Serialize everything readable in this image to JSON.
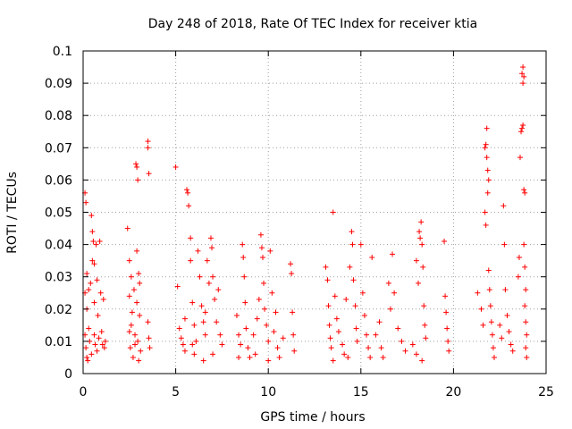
{
  "chart_data": {
    "type": "scatter",
    "title": "Day 248 of 2018, Rate Of TEC Index for receiver ktia",
    "xlabel": "GPS time / hours",
    "ylabel": "ROTI / TECUs",
    "xlim": [
      0,
      25
    ],
    "ylim": [
      0,
      0.1
    ],
    "x_ticks": [
      "0",
      "5",
      "10",
      "15",
      "20",
      "25"
    ],
    "y_ticks": [
      "0",
      "0.01",
      "0.02",
      "0.03",
      "0.04",
      "0.05",
      "0.06",
      "0.07",
      "0.08",
      "0.09",
      "0.1"
    ],
    "x_tick_values": [
      0,
      5,
      10,
      15,
      20,
      25
    ],
    "y_tick_values": [
      0,
      0.01,
      0.02,
      0.03,
      0.04,
      0.05,
      0.06,
      0.07,
      0.08,
      0.09,
      0.1
    ],
    "grid": true,
    "marker": "+",
    "color": "#ff0000",
    "series": [
      {
        "name": "ROTI",
        "points": [
          [
            0.1,
            0.056
          ],
          [
            0.15,
            0.053
          ],
          [
            0.2,
            0.031
          ],
          [
            0.1,
            0.025
          ],
          [
            0.2,
            0.02
          ],
          [
            0.1,
            0.012
          ],
          [
            0.15,
            0.008
          ],
          [
            0.2,
            0.005
          ],
          [
            0.3,
            0.026
          ],
          [
            0.3,
            0.014
          ],
          [
            0.35,
            0.01
          ],
          [
            0.4,
            0.028
          ],
          [
            0.45,
            0.049
          ],
          [
            0.5,
            0.044
          ],
          [
            0.5,
            0.035
          ],
          [
            0.55,
            0.041
          ],
          [
            0.6,
            0.034
          ],
          [
            0.6,
            0.022
          ],
          [
            0.6,
            0.012
          ],
          [
            0.65,
            0.009
          ],
          [
            0.7,
            0.04
          ],
          [
            0.75,
            0.029
          ],
          [
            0.8,
            0.018
          ],
          [
            0.85,
            0.011
          ],
          [
            0.9,
            0.041
          ],
          [
            0.95,
            0.025
          ],
          [
            1.0,
            0.013
          ],
          [
            1.05,
            0.009
          ],
          [
            1.1,
            0.023
          ],
          [
            1.2,
            0.01
          ],
          [
            0.25,
            0.004
          ],
          [
            0.45,
            0.006
          ],
          [
            0.75,
            0.007
          ],
          [
            1.15,
            0.008
          ],
          [
            2.4,
            0.045
          ],
          [
            2.5,
            0.035
          ],
          [
            2.5,
            0.024
          ],
          [
            2.5,
            0.013
          ],
          [
            2.55,
            0.008
          ],
          [
            2.6,
            0.03
          ],
          [
            2.65,
            0.019
          ],
          [
            2.7,
            0.005
          ],
          [
            2.75,
            0.026
          ],
          [
            2.8,
            0.012
          ],
          [
            2.85,
            0.065
          ],
          [
            2.9,
            0.064
          ],
          [
            2.95,
            0.06
          ],
          [
            2.9,
            0.038
          ],
          [
            2.9,
            0.022
          ],
          [
            2.95,
            0.01
          ],
          [
            3.0,
            0.031
          ],
          [
            3.05,
            0.018
          ],
          [
            3.1,
            0.007
          ],
          [
            3.0,
            0.004
          ],
          [
            3.5,
            0.072
          ],
          [
            3.5,
            0.07
          ],
          [
            3.55,
            0.062
          ],
          [
            3.5,
            0.016
          ],
          [
            3.55,
            0.011
          ],
          [
            3.6,
            0.008
          ],
          [
            2.6,
            0.015
          ],
          [
            2.8,
            0.009
          ],
          [
            3.05,
            0.028
          ],
          [
            5.0,
            0.064
          ],
          [
            5.1,
            0.027
          ],
          [
            5.2,
            0.014
          ],
          [
            5.3,
            0.011
          ],
          [
            5.4,
            0.009
          ],
          [
            5.5,
            0.017
          ],
          [
            5.6,
            0.057
          ],
          [
            5.65,
            0.056
          ],
          [
            5.7,
            0.052
          ],
          [
            5.8,
            0.042
          ],
          [
            5.8,
            0.035
          ],
          [
            5.9,
            0.022
          ],
          [
            6.0,
            0.015
          ],
          [
            6.1,
            0.01
          ],
          [
            6.2,
            0.038
          ],
          [
            6.3,
            0.03
          ],
          [
            6.4,
            0.021
          ],
          [
            6.5,
            0.016
          ],
          [
            6.6,
            0.012
          ],
          [
            6.7,
            0.035
          ],
          [
            6.8,
            0.028
          ],
          [
            6.9,
            0.042
          ],
          [
            6.95,
            0.039
          ],
          [
            7.0,
            0.03
          ],
          [
            7.1,
            0.023
          ],
          [
            7.2,
            0.016
          ],
          [
            7.3,
            0.026
          ],
          [
            7.4,
            0.012
          ],
          [
            7.5,
            0.009
          ],
          [
            5.5,
            0.007
          ],
          [
            6.0,
            0.006
          ],
          [
            6.5,
            0.004
          ],
          [
            7.0,
            0.006
          ],
          [
            5.9,
            0.009
          ],
          [
            6.6,
            0.019
          ],
          [
            8.3,
            0.018
          ],
          [
            8.4,
            0.012
          ],
          [
            8.5,
            0.009
          ],
          [
            8.6,
            0.04
          ],
          [
            8.65,
            0.036
          ],
          [
            8.7,
            0.03
          ],
          [
            8.75,
            0.022
          ],
          [
            8.8,
            0.014
          ],
          [
            8.9,
            0.008
          ],
          [
            9.0,
            0.005
          ],
          [
            9.2,
            0.012
          ],
          [
            9.4,
            0.017
          ],
          [
            9.5,
            0.023
          ],
          [
            9.6,
            0.043
          ],
          [
            9.65,
            0.039
          ],
          [
            9.7,
            0.036
          ],
          [
            9.75,
            0.028
          ],
          [
            9.8,
            0.02
          ],
          [
            9.9,
            0.015
          ],
          [
            10.0,
            0.01
          ],
          [
            10.1,
            0.038
          ],
          [
            10.2,
            0.025
          ],
          [
            10.3,
            0.013
          ],
          [
            10.4,
            0.019
          ],
          [
            10.5,
            0.008
          ],
          [
            10.6,
            0.005
          ],
          [
            10.8,
            0.011
          ],
          [
            11.2,
            0.034
          ],
          [
            11.25,
            0.031
          ],
          [
            11.3,
            0.019
          ],
          [
            11.35,
            0.012
          ],
          [
            11.4,
            0.007
          ],
          [
            9.3,
            0.006
          ],
          [
            10.0,
            0.004
          ],
          [
            8.4,
            0.005
          ],
          [
            13.1,
            0.033
          ],
          [
            13.2,
            0.029
          ],
          [
            13.25,
            0.021
          ],
          [
            13.3,
            0.015
          ],
          [
            13.35,
            0.011
          ],
          [
            13.4,
            0.008
          ],
          [
            13.5,
            0.05
          ],
          [
            13.6,
            0.024
          ],
          [
            13.7,
            0.017
          ],
          [
            13.8,
            0.013
          ],
          [
            14.0,
            0.009
          ],
          [
            14.1,
            0.006
          ],
          [
            14.2,
            0.023
          ],
          [
            14.4,
            0.033
          ],
          [
            14.5,
            0.044
          ],
          [
            14.55,
            0.04
          ],
          [
            14.6,
            0.029
          ],
          [
            14.7,
            0.021
          ],
          [
            14.75,
            0.014
          ],
          [
            14.8,
            0.01
          ],
          [
            15.0,
            0.04
          ],
          [
            15.1,
            0.025
          ],
          [
            15.2,
            0.018
          ],
          [
            15.3,
            0.012
          ],
          [
            15.4,
            0.008
          ],
          [
            15.5,
            0.005
          ],
          [
            15.6,
            0.036
          ],
          [
            15.8,
            0.012
          ],
          [
            16.0,
            0.016
          ],
          [
            16.1,
            0.008
          ],
          [
            16.2,
            0.005
          ],
          [
            16.5,
            0.028
          ],
          [
            16.6,
            0.02
          ],
          [
            16.7,
            0.037
          ],
          [
            16.8,
            0.025
          ],
          [
            17.0,
            0.014
          ],
          [
            17.2,
            0.01
          ],
          [
            17.4,
            0.007
          ],
          [
            13.5,
            0.004
          ],
          [
            14.3,
            0.005
          ],
          [
            18.0,
            0.035
          ],
          [
            18.1,
            0.028
          ],
          [
            18.15,
            0.044
          ],
          [
            18.2,
            0.042
          ],
          [
            18.25,
            0.047
          ],
          [
            18.3,
            0.04
          ],
          [
            18.35,
            0.033
          ],
          [
            18.4,
            0.021
          ],
          [
            18.45,
            0.015
          ],
          [
            18.5,
            0.011
          ],
          [
            17.8,
            0.009
          ],
          [
            18.0,
            0.006
          ],
          [
            18.3,
            0.004
          ],
          [
            19.5,
            0.041
          ],
          [
            19.55,
            0.024
          ],
          [
            19.6,
            0.019
          ],
          [
            19.65,
            0.014
          ],
          [
            19.7,
            0.01
          ],
          [
            19.75,
            0.007
          ],
          [
            21.3,
            0.025
          ],
          [
            21.5,
            0.02
          ],
          [
            21.6,
            0.015
          ],
          [
            21.7,
            0.05
          ],
          [
            21.75,
            0.046
          ],
          [
            21.8,
            0.076
          ],
          [
            21.75,
            0.071
          ],
          [
            21.7,
            0.07
          ],
          [
            21.8,
            0.067
          ],
          [
            21.85,
            0.063
          ],
          [
            21.9,
            0.06
          ],
          [
            21.85,
            0.056
          ],
          [
            21.9,
            0.032
          ],
          [
            21.95,
            0.026
          ],
          [
            22.0,
            0.021
          ],
          [
            22.05,
            0.016
          ],
          [
            22.1,
            0.012
          ],
          [
            22.15,
            0.008
          ],
          [
            22.2,
            0.005
          ],
          [
            22.5,
            0.015
          ],
          [
            22.6,
            0.011
          ],
          [
            22.7,
            0.052
          ],
          [
            22.75,
            0.04
          ],
          [
            22.8,
            0.026
          ],
          [
            22.9,
            0.018
          ],
          [
            23.0,
            0.013
          ],
          [
            23.1,
            0.009
          ],
          [
            23.2,
            0.007
          ],
          [
            23.5,
            0.03
          ],
          [
            23.55,
            0.036
          ],
          [
            23.6,
            0.067
          ],
          [
            23.65,
            0.075
          ],
          [
            23.7,
            0.076
          ],
          [
            23.75,
            0.077
          ],
          [
            23.7,
            0.093
          ],
          [
            23.75,
            0.095
          ],
          [
            23.8,
            0.092
          ],
          [
            23.75,
            0.09
          ],
          [
            23.8,
            0.057
          ],
          [
            23.85,
            0.056
          ],
          [
            23.8,
            0.04
          ],
          [
            23.85,
            0.033
          ],
          [
            23.9,
            0.026
          ],
          [
            23.85,
            0.021
          ],
          [
            23.9,
            0.016
          ],
          [
            23.95,
            0.012
          ],
          [
            23.9,
            0.008
          ],
          [
            23.95,
            0.005
          ]
        ]
      }
    ]
  }
}
